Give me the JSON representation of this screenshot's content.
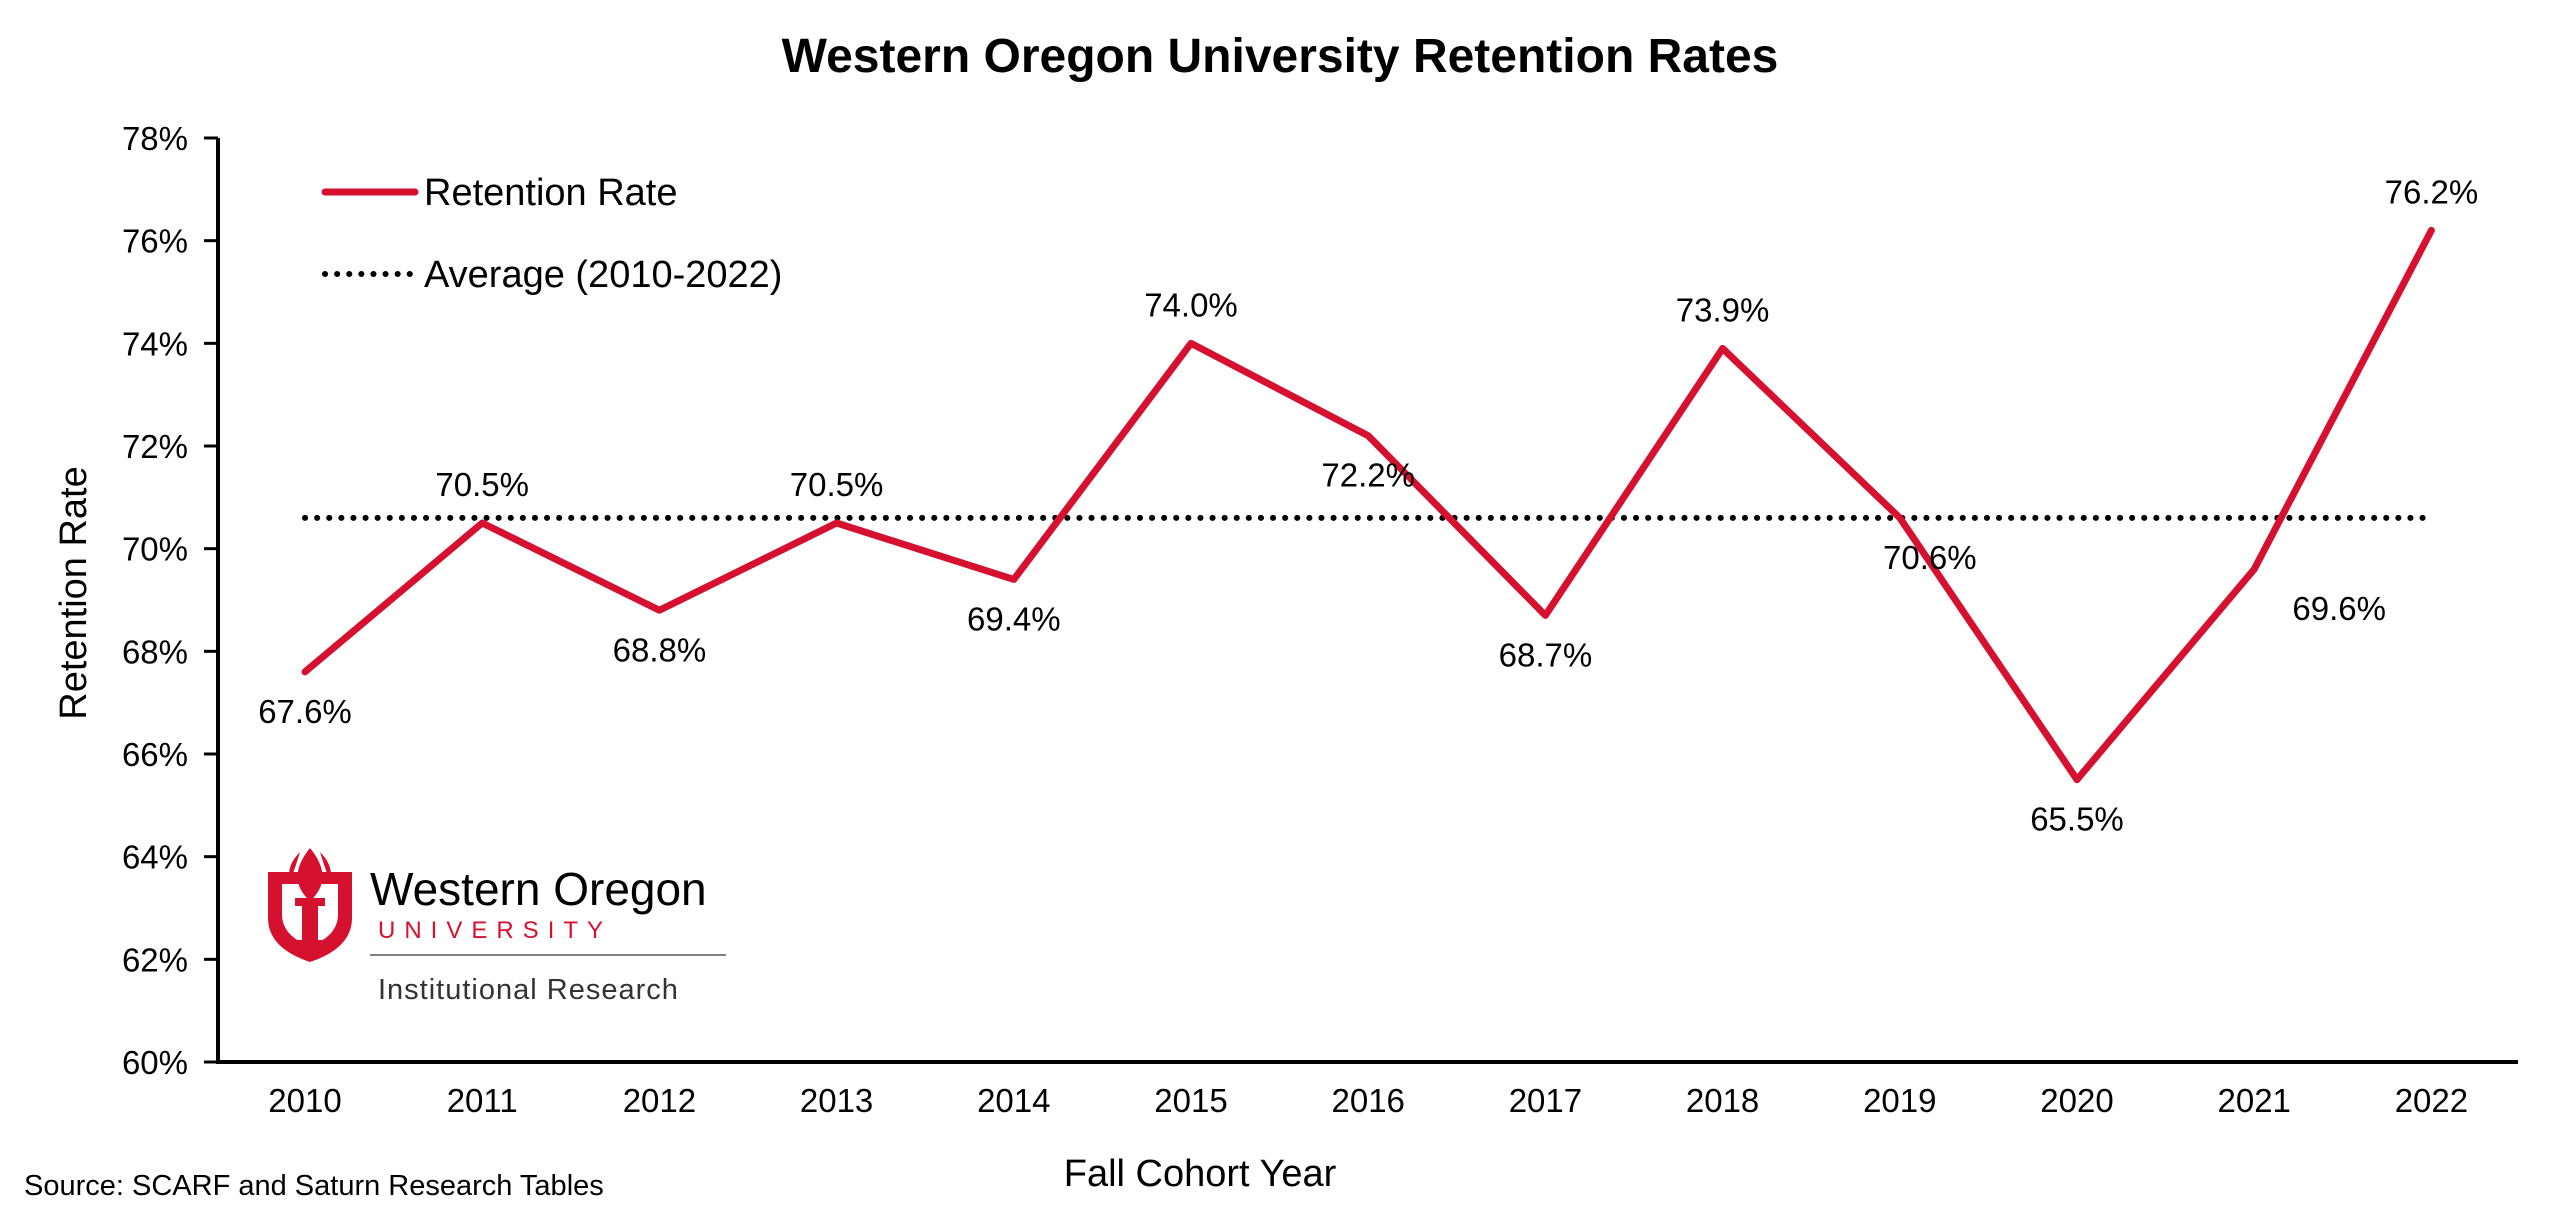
{
  "chart_data": {
    "type": "line",
    "title": "Western Oregon University Retention Rates",
    "xlabel": "Fall Cohort Year",
    "ylabel": "Retention Rate",
    "categories": [
      "2010",
      "2011",
      "2012",
      "2013",
      "2014",
      "2015",
      "2016",
      "2017",
      "2018",
      "2019",
      "2020",
      "2021",
      "2022"
    ],
    "series": [
      {
        "name": "Retention Rate",
        "color": "#d6112f",
        "style": "solid",
        "values": [
          67.6,
          70.5,
          68.8,
          70.5,
          69.4,
          74.0,
          72.2,
          68.7,
          73.9,
          70.6,
          65.5,
          69.6,
          76.2
        ],
        "labels": [
          "67.6%",
          "70.5%",
          "68.8%",
          "70.5%",
          "69.4%",
          "74.0%",
          "72.2%",
          "68.7%",
          "73.9%",
          "70.6%",
          "65.5%",
          "69.6%",
          "76.2%"
        ]
      },
      {
        "name": "Average (2010-2022)",
        "color": "#000000",
        "style": "dotted",
        "value": 70.6
      }
    ],
    "ylim": [
      60,
      78
    ],
    "yticks": [
      60,
      62,
      64,
      66,
      68,
      70,
      72,
      74,
      76,
      78
    ],
    "ytick_labels": [
      "60%",
      "62%",
      "64%",
      "66%",
      "68%",
      "70%",
      "72%",
      "74%",
      "76%",
      "78%"
    ],
    "grid": false,
    "legend": "top-left",
    "source": "Source: SCARF and Saturn Research Tables"
  },
  "logo": {
    "name": "Western Oregon",
    "subtitle": "UNIVERSITY",
    "department": "Institutional Research",
    "icon": "torch-shield-icon",
    "color": "#d6112f"
  }
}
